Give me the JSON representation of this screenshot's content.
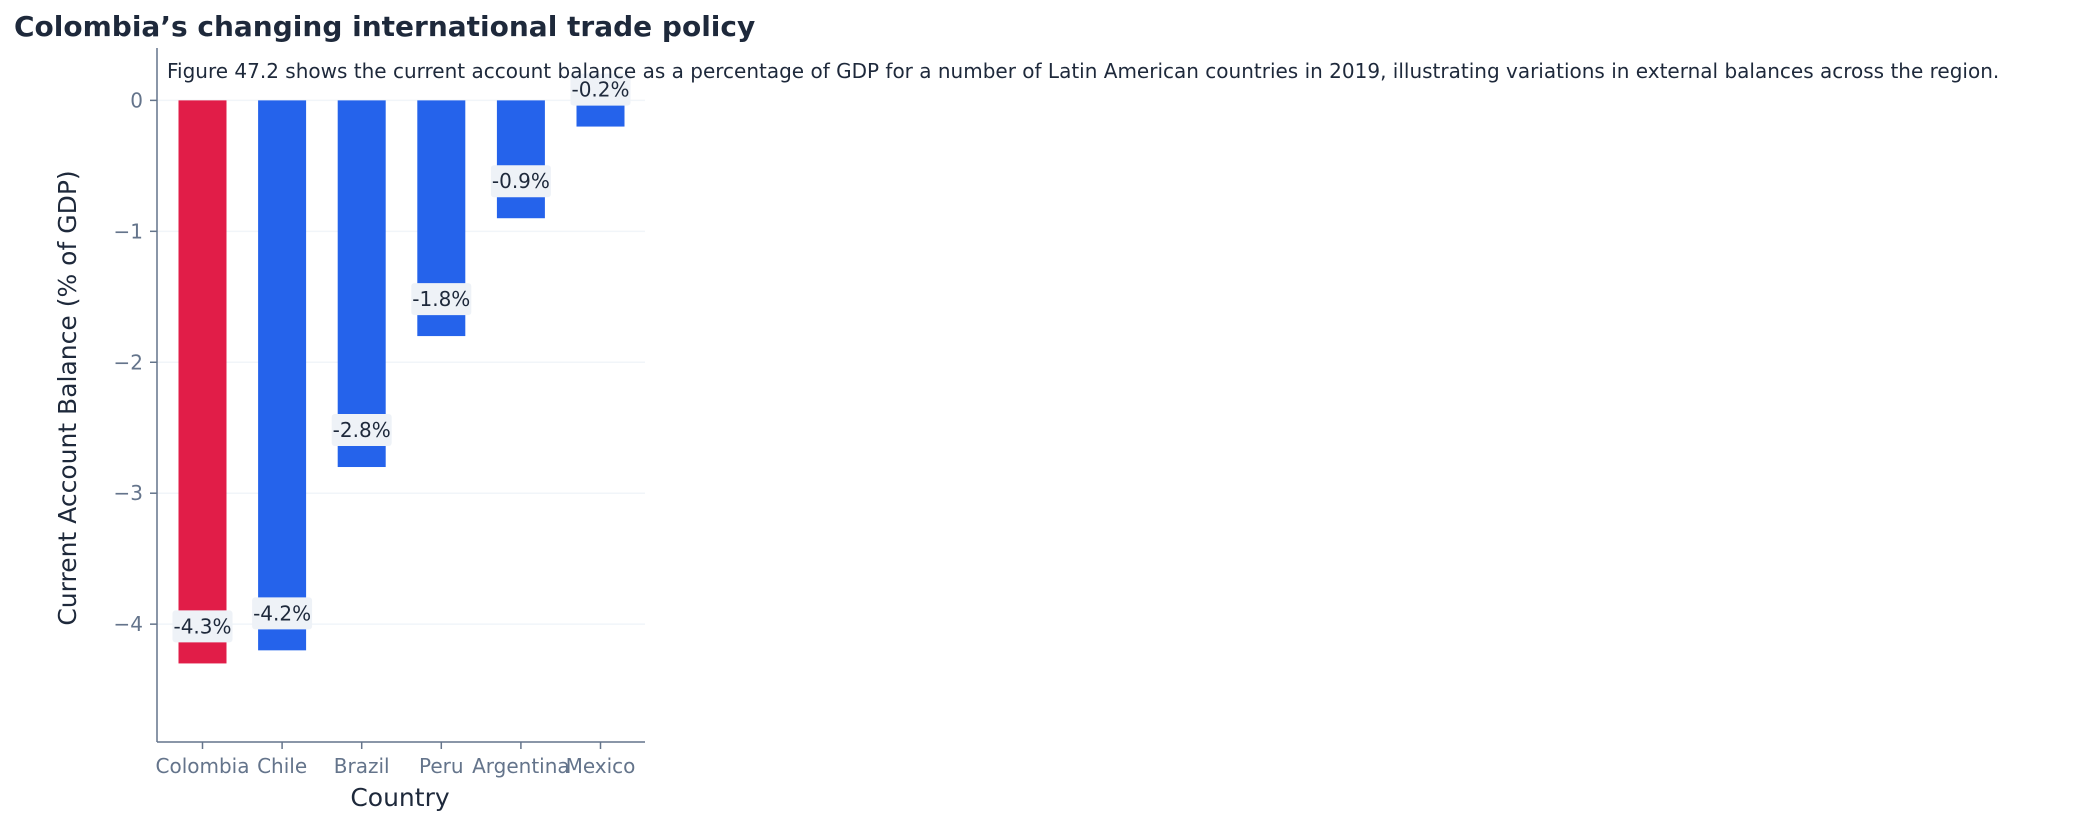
{
  "chart_data": {
    "type": "bar",
    "title": "Colombia’s changing international trade policy",
    "subtitle": "Figure 47.2 shows the current account balance as a percentage of GDP for a number of Latin American countries in 2019, illustrating variations in external balances across the region.",
    "xlabel": "Country",
    "ylabel": "Current Account Balance (% of GDP)",
    "categories": [
      "Colombia",
      "Chile",
      "Brazil",
      "Peru",
      "Argentina",
      "Mexico"
    ],
    "values": [
      -4.3,
      -4.2,
      -2.8,
      -1.8,
      -0.9,
      -0.2
    ],
    "data_labels": [
      "-4.3%",
      "-4.2%",
      "-2.8%",
      "-1.8%",
      "-0.9%",
      "-0.2%"
    ],
    "yticks": [
      0,
      -1,
      -2,
      -3,
      -4
    ],
    "ytick_labels": [
      "0",
      "−1",
      "−2",
      "−3",
      "−4"
    ],
    "ylim": [
      -4.9,
      0.4
    ],
    "grid": "horizontal",
    "highlight_category": "Colombia",
    "colors": {
      "highlight": "#e11d48",
      "bar": "#2563eb",
      "grid": "#f1f5f9",
      "axis": "#64748b",
      "label_box": "#eef2f7"
    }
  }
}
